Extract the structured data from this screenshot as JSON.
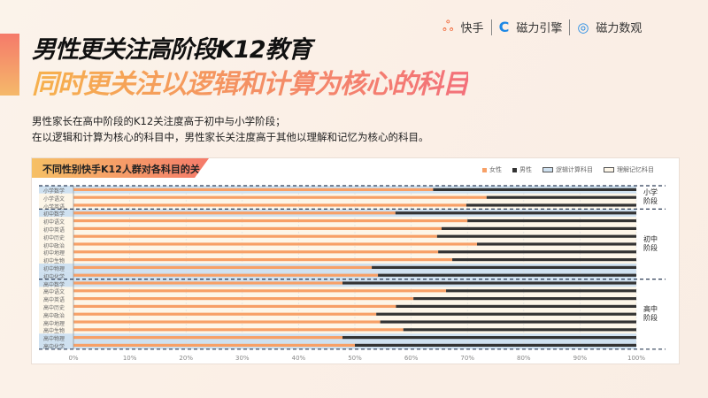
{
  "header": {
    "title_line1": "男性更关注高阶段K12教育",
    "title_line2": "同时更关注以逻辑和计算为核心的科目",
    "desc_line1": "男性家长在高中阶段的K12关注度高于初中与小学阶段；",
    "desc_line2": "在以逻辑和计算为核心的科目中，男性家长关注度高于其他以理解和记忆为核心的科目。"
  },
  "logos": {
    "kuaishou": "快手",
    "engine": "磁力引擎",
    "data": "磁力数观"
  },
  "colors": {
    "female": "#f7a067",
    "male": "#333333",
    "logic_bg": "#cfe1f0",
    "memory_bg": "#fdf6e8"
  },
  "chart_data": {
    "type": "bar",
    "stacked": true,
    "orientation": "horizontal",
    "title": "不同性别快手K12人群对各科目的关注度",
    "legend": [
      "女性",
      "男性",
      "逻辑计算科目",
      "理解记忆科目"
    ],
    "legend_position": "top-right",
    "xlim": [
      0,
      100
    ],
    "xticks": [
      "0%",
      "10%",
      "20%",
      "30%",
      "40%",
      "50%",
      "60%",
      "70%",
      "80%",
      "90%",
      "100%"
    ],
    "stages": [
      {
        "label": "小学\n阶段",
        "count": 3
      },
      {
        "label": "初中\n阶段",
        "count": 9
      },
      {
        "label": "高中\n阶段",
        "count": 9
      }
    ],
    "categories": [
      "小学数学",
      "小学语文",
      "小学英语",
      "初中数学",
      "初中语文",
      "初中英语",
      "初中历史",
      "初中政治",
      "初中地理",
      "初中生物",
      "初中物理",
      "初中化学",
      "高中数学",
      "高中语文",
      "高中英语",
      "高中历史",
      "高中政治",
      "高中地理",
      "高中生物",
      "高中物理",
      "高中化学"
    ],
    "logic": [
      true,
      false,
      false,
      true,
      false,
      false,
      false,
      false,
      false,
      false,
      true,
      true,
      true,
      false,
      false,
      false,
      false,
      false,
      false,
      true,
      true
    ],
    "series": [
      {
        "name": "女性",
        "values": [
          63.9,
          73.4,
          69.8,
          57.2,
          70.0,
          65.4,
          64.6,
          71.7,
          64.8,
          67.3,
          53.0,
          54.1,
          47.8,
          66.2,
          60.4,
          57.3,
          53.8,
          54.5,
          58.6,
          47.8,
          50.0
        ]
      },
      {
        "name": "男性",
        "values": [
          36.1,
          26.6,
          30.2,
          42.8,
          30.0,
          34.6,
          35.4,
          28.3,
          35.2,
          32.7,
          47.0,
          45.9,
          52.2,
          33.8,
          39.6,
          42.7,
          46.2,
          45.5,
          41.4,
          52.2,
          50.0
        ]
      }
    ]
  }
}
